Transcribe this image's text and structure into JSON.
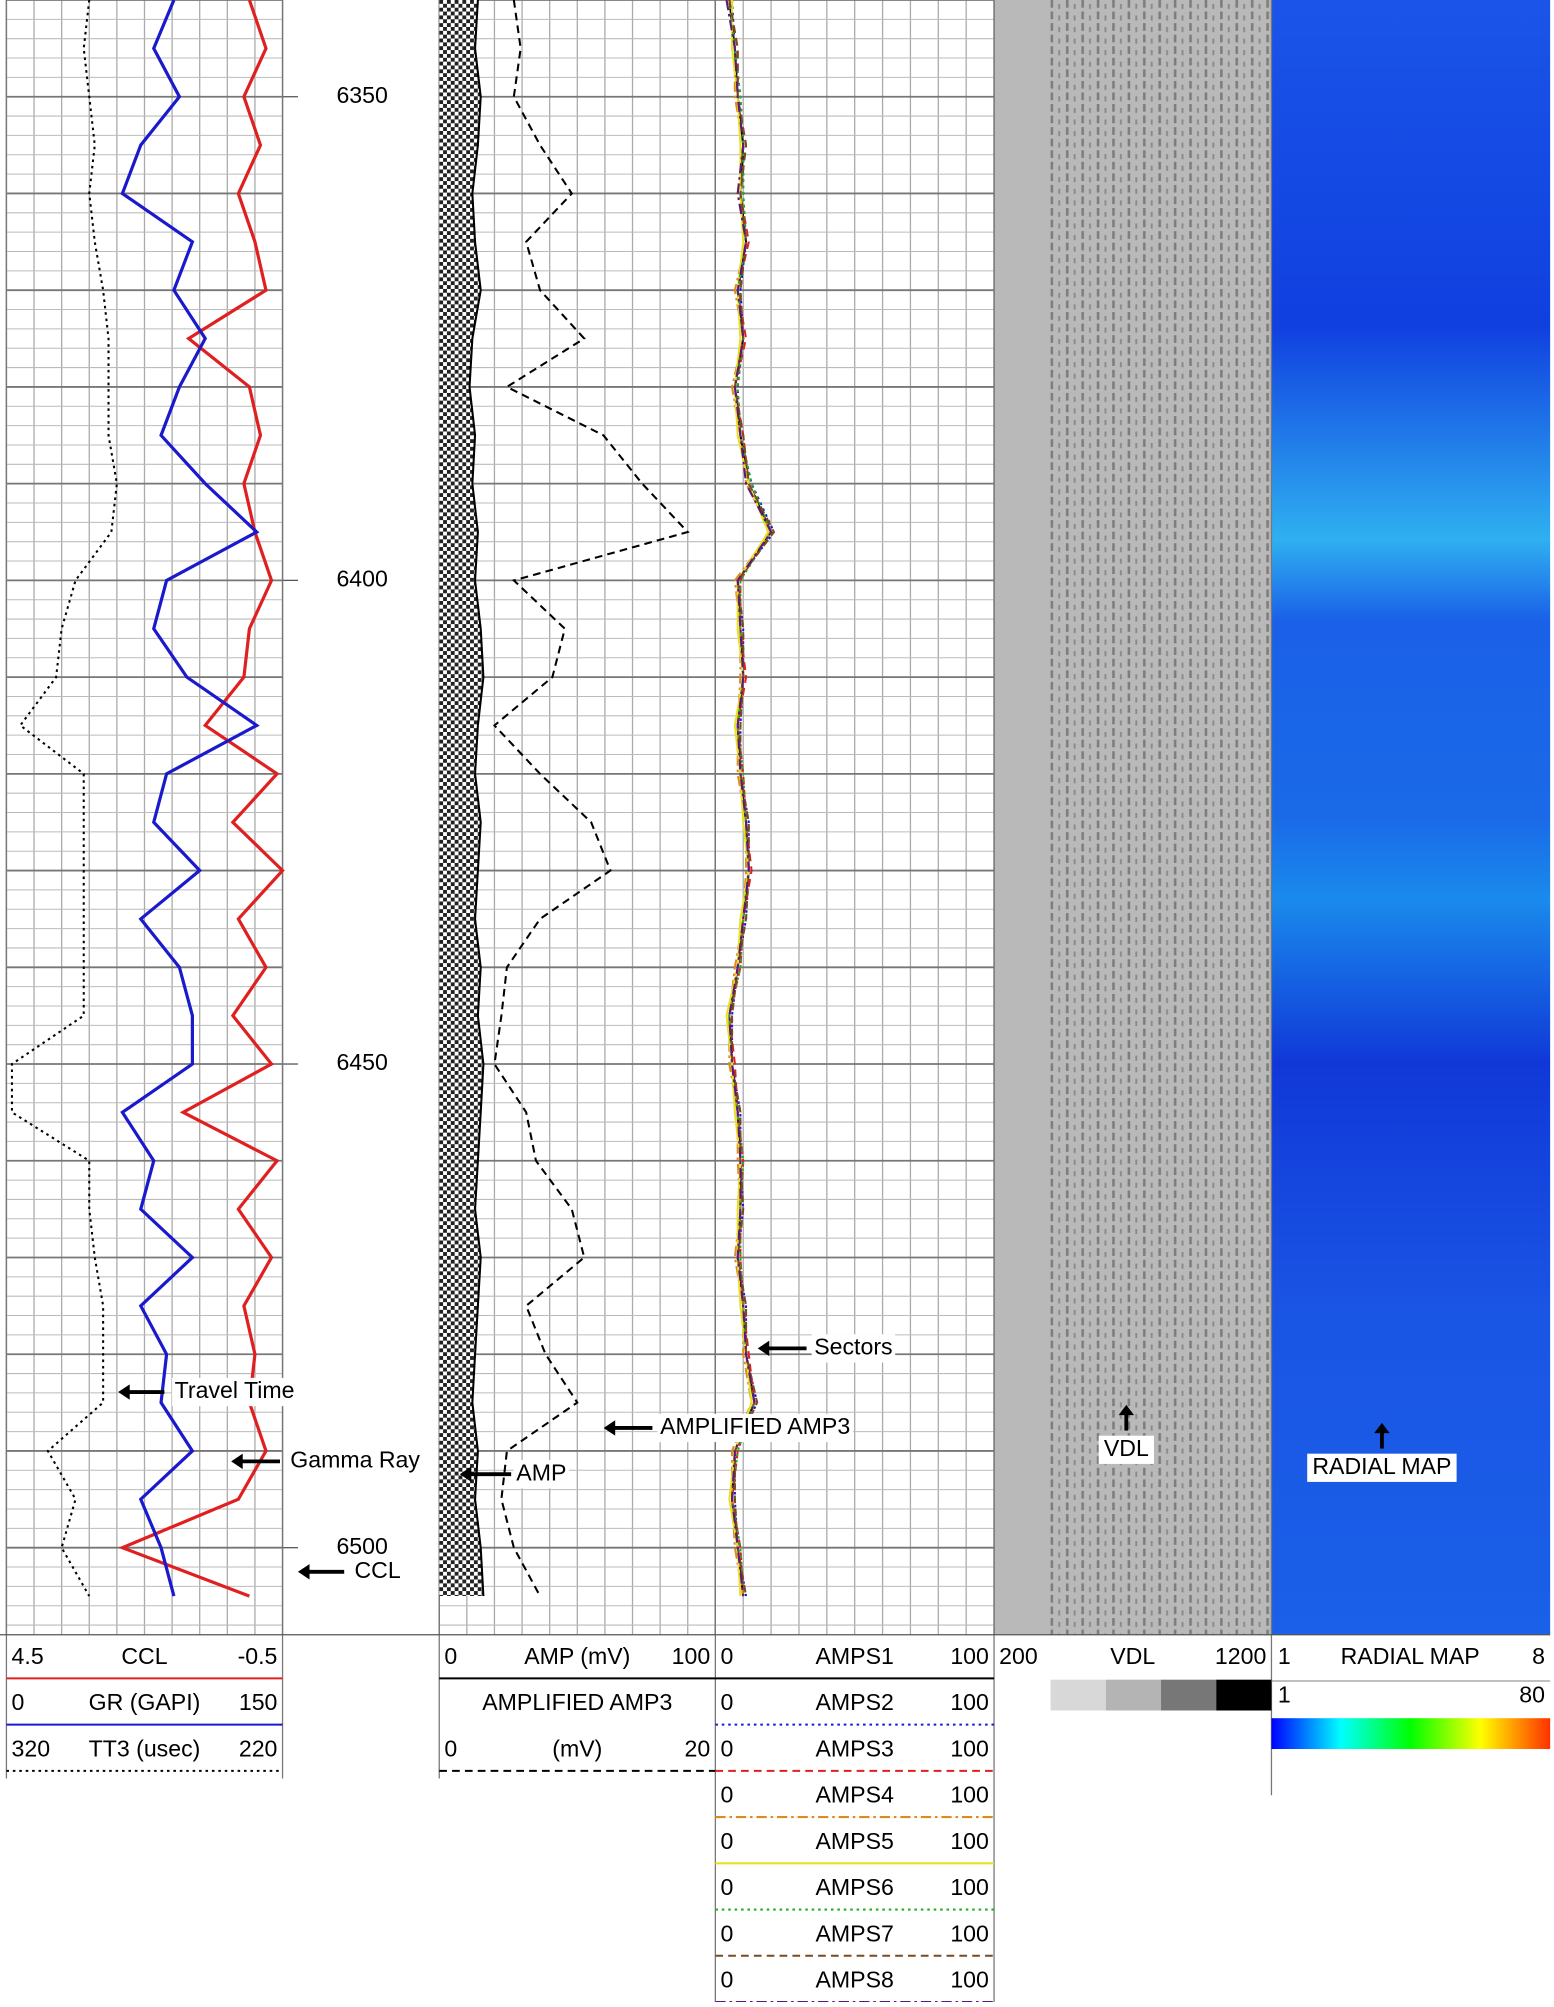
{
  "chart_data": {
    "type": "well-log",
    "ylim": [
      6340,
      6509
    ],
    "yticks": [
      6350,
      6400,
      6450,
      6500
    ],
    "grid": true,
    "depth": [
      6340,
      6345,
      6350,
      6355,
      6360,
      6365,
      6370,
      6375,
      6380,
      6385,
      6390,
      6395,
      6400,
      6405,
      6410,
      6415,
      6420,
      6425,
      6430,
      6435,
      6440,
      6445,
      6450,
      6455,
      6460,
      6465,
      6470,
      6475,
      6480,
      6485,
      6490,
      6495,
      6500,
      6505
    ],
    "curves": [
      {
        "name": "CCL",
        "track": 0,
        "xlim": [
          4.5,
          -0.5
        ],
        "color": "#e02020",
        "style": "solid",
        "values": [
          0.1,
          -0.2,
          0.2,
          -0.1,
          0.3,
          0.0,
          -0.2,
          1.2,
          0.1,
          -0.1,
          0.2,
          0.0,
          -0.3,
          0.1,
          0.2,
          0.9,
          -0.4,
          0.4,
          -0.5,
          0.3,
          -0.2,
          0.4,
          -0.3,
          1.3,
          -0.4,
          0.3,
          -0.3,
          0.2,
          0.0,
          0.1,
          -0.2,
          0.3,
          2.4,
          0.1
        ]
      },
      {
        "name": "GR (GAPI)",
        "track": 0,
        "xlim": [
          0,
          150
        ],
        "color": "#1a1acc",
        "style": "solid",
        "values": [
          91,
          80,
          94,
          73,
          63,
          101,
          91,
          108,
          94,
          84,
          108,
          136,
          87,
          80,
          98,
          136,
          87,
          80,
          105,
          73,
          94,
          101,
          101,
          63,
          80,
          73,
          101,
          73,
          87,
          84,
          101,
          73,
          84,
          91
        ]
      },
      {
        "name": "TT3 (usec)",
        "track": 0,
        "xlim": [
          320,
          220
        ],
        "color": "#000000",
        "style": "dotted",
        "values": [
          290,
          292,
          290,
          288,
          290,
          288,
          285,
          283,
          283,
          283,
          280,
          282,
          295,
          300,
          302,
          315,
          292,
          292,
          292,
          292,
          292,
          292,
          318,
          318,
          290,
          290,
          288,
          285,
          285,
          285,
          305,
          295,
          300,
          290
        ]
      },
      {
        "name": "AMP (mV)",
        "track": 1,
        "xlim": [
          0,
          100
        ],
        "color": "#000000",
        "style": "solid",
        "fill": true,
        "values": [
          14,
          13,
          15,
          14,
          12,
          13,
          15,
          12,
          11,
          13,
          12,
          14,
          13,
          15,
          16,
          14,
          13,
          15,
          14,
          13,
          15,
          14,
          16,
          15,
          14,
          13,
          15,
          14,
          13,
          12,
          14,
          13,
          15,
          16
        ]
      },
      {
        "name": "AMPLIFIED AMP3",
        "unit": "(mV)",
        "track": 1,
        "xlim": [
          0,
          20
        ],
        "color": "#000000",
        "style": "dashed",
        "values": [
          5.4,
          5.9,
          5.4,
          7.3,
          9.6,
          6.3,
          7.3,
          10.5,
          4.9,
          11.9,
          14.7,
          18.0,
          5.4,
          9.1,
          8.2,
          4.0,
          7.3,
          11.0,
          12.4,
          7.3,
          4.9,
          4.5,
          4.0,
          6.3,
          7.0,
          9.6,
          10.5,
          6.3,
          7.7,
          10.0,
          4.9,
          4.5,
          5.4,
          7.3
        ]
      },
      {
        "name": "AMPS1",
        "track": 2,
        "xlim": [
          0,
          100
        ],
        "color": "#000000",
        "style": "solid",
        "values": [
          5,
          7,
          8,
          10,
          9,
          11,
          8,
          10,
          7,
          9,
          12,
          20,
          8,
          9,
          10,
          8,
          9,
          11,
          12,
          10,
          8,
          5,
          6,
          8,
          9,
          9,
          8,
          10,
          11,
          14,
          7,
          6,
          8,
          10
        ]
      },
      {
        "name": "AMPS2",
        "track": 2,
        "xlim": [
          0,
          100
        ],
        "color": "#1a1acc",
        "style": "dotted",
        "values": [
          6,
          7,
          9,
          10,
          10,
          11,
          9,
          10,
          8,
          9,
          13,
          21,
          8,
          10,
          10,
          9,
          9,
          12,
          12,
          11,
          8,
          6,
          6,
          9,
          9,
          10,
          8,
          11,
          11,
          15,
          7,
          7,
          8,
          11
        ]
      },
      {
        "name": "AMPS3",
        "track": 2,
        "xlim": [
          0,
          100
        ],
        "color": "#e02020",
        "style": "dashed",
        "values": [
          5,
          8,
          8,
          11,
          9,
          12,
          8,
          11,
          7,
          10,
          12,
          19,
          9,
          9,
          11,
          8,
          10,
          11,
          13,
          10,
          9,
          5,
          7,
          8,
          10,
          9,
          9,
          10,
          12,
          14,
          8,
          6,
          9,
          10
        ]
      },
      {
        "name": "AMPS4",
        "track": 2,
        "xlim": [
          0,
          100
        ],
        "color": "#e08a1a",
        "style": "dashdot",
        "values": [
          4,
          7,
          7,
          10,
          8,
          11,
          7,
          10,
          6,
          9,
          11,
          20,
          7,
          9,
          9,
          8,
          8,
          11,
          11,
          10,
          7,
          5,
          5,
          8,
          8,
          9,
          7,
          10,
          10,
          13,
          6,
          6,
          7,
          10
        ]
      },
      {
        "name": "AMPS5",
        "track": 2,
        "xlim": [
          0,
          100
        ],
        "color": "#e8e020",
        "style": "solid",
        "values": [
          6,
          6,
          8,
          9,
          9,
          10,
          8,
          9,
          7,
          8,
          12,
          19,
          8,
          8,
          10,
          7,
          9,
          10,
          12,
          9,
          8,
          4,
          6,
          7,
          9,
          8,
          8,
          9,
          11,
          13,
          7,
          5,
          8,
          9
        ]
      },
      {
        "name": "AMPS6",
        "track": 2,
        "xlim": [
          0,
          100
        ],
        "color": "#20b020",
        "style": "dotted",
        "values": [
          5,
          7,
          9,
          10,
          10,
          11,
          8,
          10,
          8,
          9,
          13,
          20,
          9,
          9,
          10,
          8,
          10,
          11,
          12,
          10,
          9,
          5,
          6,
          8,
          10,
          9,
          9,
          10,
          11,
          14,
          8,
          6,
          9,
          10
        ]
      },
      {
        "name": "AMPS7",
        "track": 2,
        "xlim": [
          0,
          100
        ],
        "color": "#7a4a20",
        "style": "dashed",
        "values": [
          5,
          8,
          8,
          11,
          9,
          11,
          9,
          10,
          7,
          10,
          12,
          21,
          8,
          10,
          10,
          9,
          9,
          12,
          12,
          11,
          8,
          6,
          6,
          9,
          9,
          10,
          8,
          11,
          11,
          15,
          7,
          7,
          8,
          11
        ]
      },
      {
        "name": "AMPS8",
        "track": 2,
        "xlim": [
          0,
          100
        ],
        "color": "#5a1a7a",
        "style": "dashdot",
        "values": [
          4,
          7,
          8,
          10,
          8,
          11,
          8,
          10,
          7,
          9,
          11,
          20,
          8,
          9,
          10,
          8,
          9,
          11,
          12,
          10,
          8,
          5,
          6,
          8,
          9,
          9,
          8,
          10,
          11,
          14,
          7,
          6,
          8,
          10
        ]
      }
    ],
    "vdl": {
      "name": "VDL",
      "xlim": [
        200,
        1200
      ]
    },
    "radial_map": {
      "name": "RADIAL MAP",
      "xlim": [
        1,
        8
      ],
      "colorbar": [
        1,
        80
      ]
    },
    "annotations": [
      "Travel Time",
      "Gamma Ray",
      "CCL",
      "AMP",
      "AMPLIFIED AMP3",
      "Sectors",
      "VDL",
      "RADIAL MAP"
    ]
  }
}
